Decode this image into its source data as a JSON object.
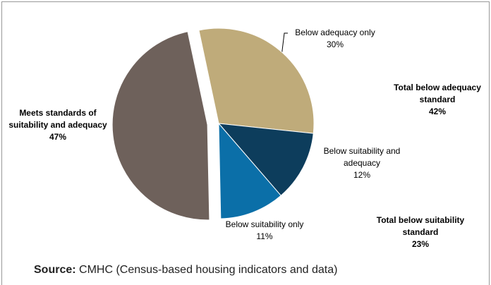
{
  "chart_data": {
    "type": "pie",
    "categories": [
      "Below adequacy only",
      "Below suitability and adequacy",
      "Below suitability only",
      "Meets standards of suitability and adequacy"
    ],
    "values": [
      30,
      12,
      11,
      47
    ],
    "value_labels": [
      "30%",
      "12%",
      "11%",
      "47%"
    ],
    "colors": [
      "#bfab7a",
      "#0d3d5c",
      "#0b6fa8",
      "#6e615b"
    ],
    "annotations": [
      {
        "text": "Total below adequacy standard",
        "value_label": "42%"
      },
      {
        "text": "Total below suitability standard",
        "value_label": "23%"
      }
    ],
    "source_label": "Source:",
    "source": "CMHC (Census-based housing indicators and data)"
  }
}
